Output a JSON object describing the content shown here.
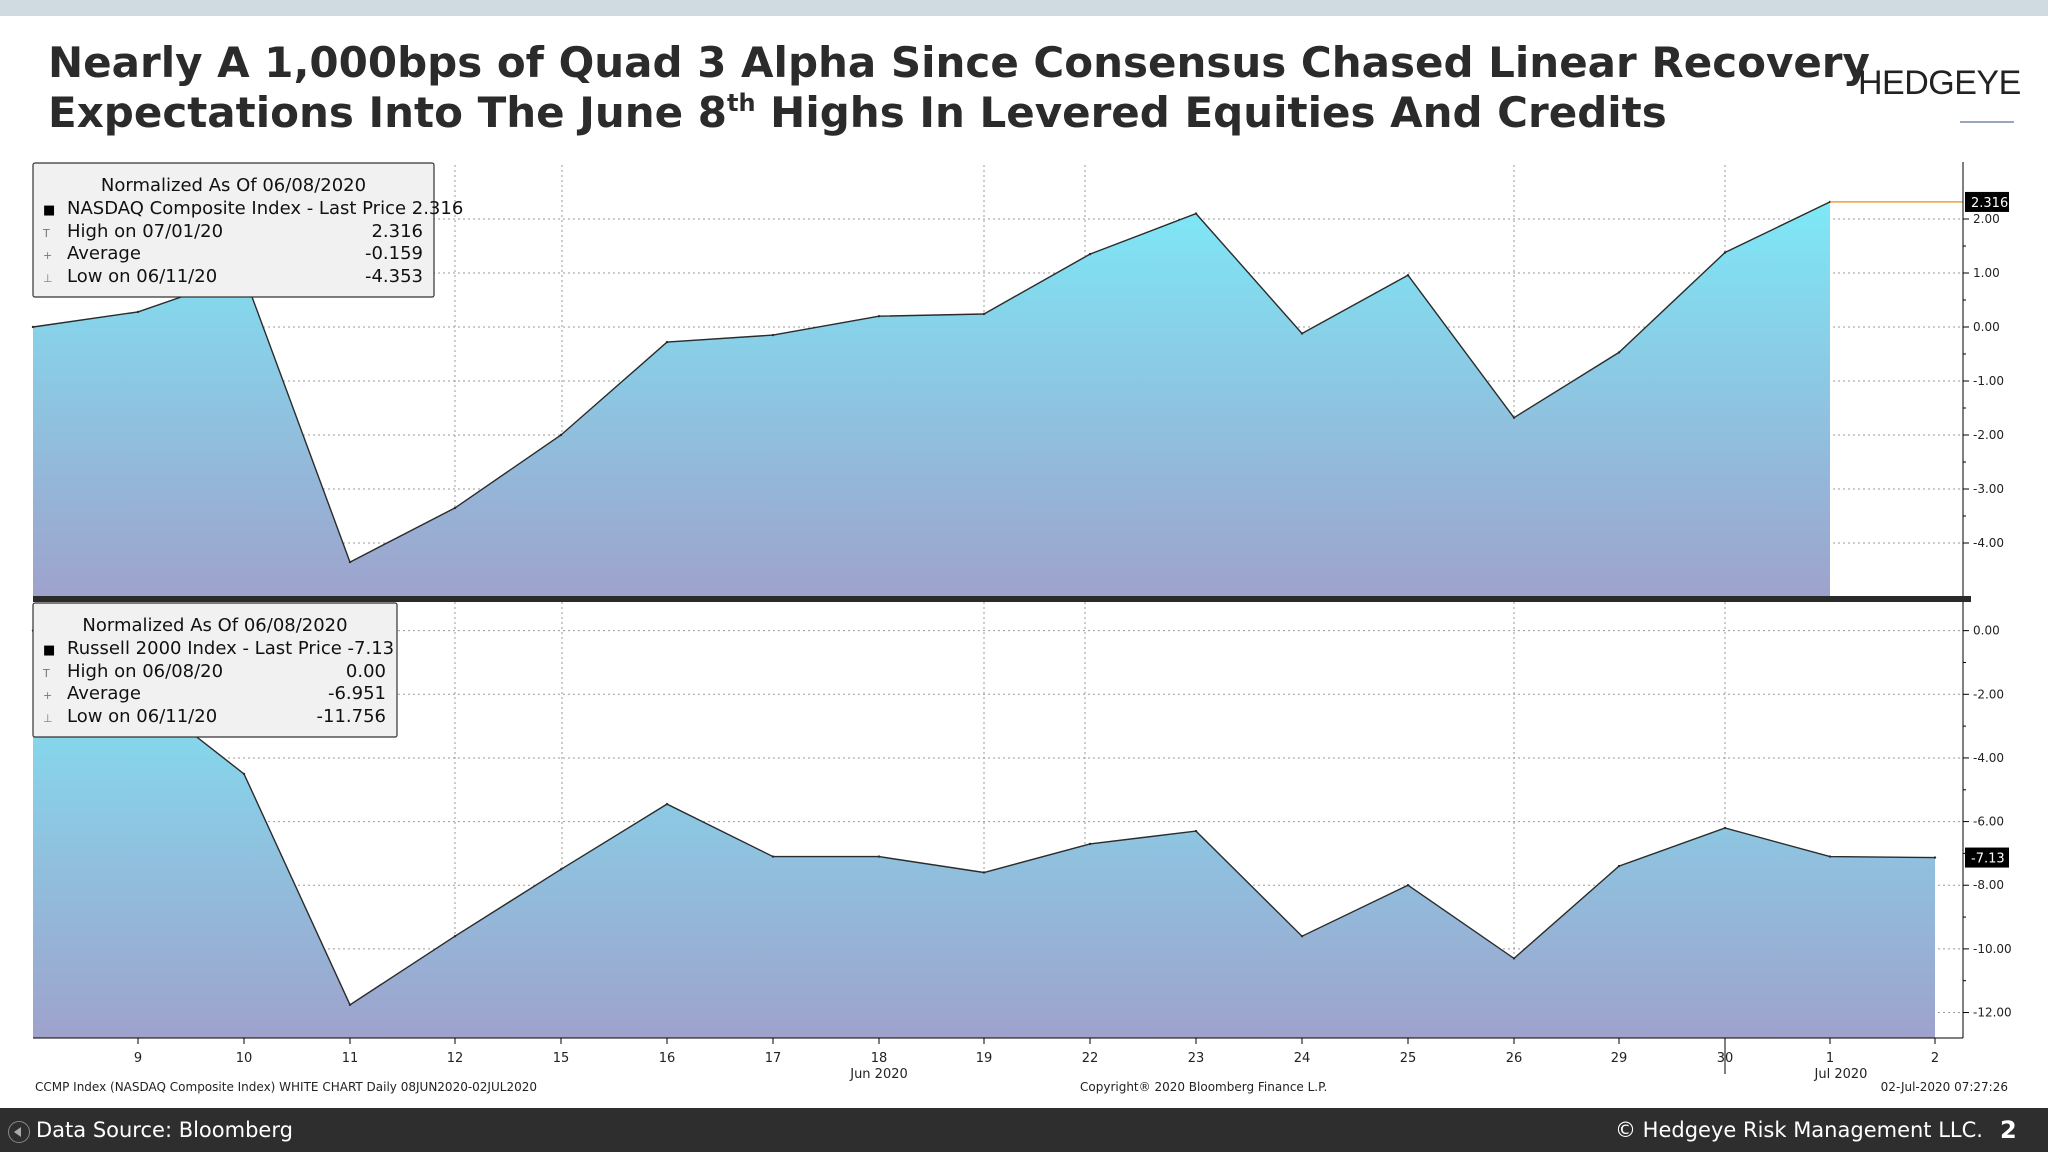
{
  "header": {
    "title_line1": "Nearly A 1,000bps of Quad 3 Alpha Since Consensus Chased Linear Recovery",
    "title_line2_pre": "Expectations Into The June 8",
    "title_line2_sup": "th",
    "title_line2_post": " Highs In Levered Equities And Credits",
    "logo": "HEDGEYE"
  },
  "footer": {
    "data_source": "Data Source: Bloomberg",
    "copyright": "© Hedgeye Risk Management LLC.",
    "page_number": "2",
    "chart_source": "CCMP Index (NASDAQ Composite Index) WHITE CHART  Daily 08JUN2020-02JUL2020",
    "chart_copyright": "Copyright® 2020 Bloomberg Finance L.P.",
    "chart_timestamp": "02-Jul-2020 07:27:26"
  },
  "colors": {
    "fill_top": "#7de8f6",
    "fill_bottom": "#9ea2cc",
    "line": "#2b2b2b",
    "last_price_line": "#f0a030",
    "grid": "#9a9a9a"
  },
  "chart_data": [
    {
      "type": "area",
      "x": [
        "2020-06-08",
        "2020-06-09",
        "2020-06-10",
        "2020-06-11",
        "2020-06-12",
        "2020-06-15",
        "2020-06-16",
        "2020-06-17",
        "2020-06-18",
        "2020-06-19",
        "2020-06-22",
        "2020-06-23",
        "2020-06-24",
        "2020-06-25",
        "2020-06-26",
        "2020-06-29",
        "2020-06-30",
        "2020-07-01"
      ],
      "series": [
        {
          "name": "NASDAQ Composite Index - Last Price",
          "values": [
            0.0,
            0.28,
            0.96,
            -4.353,
            -3.35,
            -2.0,
            -0.28,
            -0.15,
            0.2,
            0.24,
            1.35,
            2.1,
            -0.12,
            0.96,
            -1.68,
            -0.47,
            1.38,
            2.316
          ]
        }
      ],
      "ylim": [
        -5.0,
        3.0
      ],
      "yticks": [
        -4,
        -3,
        -2,
        -1,
        0,
        1,
        2
      ],
      "ytick_labels": [
        "-4.00",
        "-3.00",
        "-2.00",
        "-1.00",
        "0.00",
        "1.00",
        "2.00"
      ],
      "last_price_label": "2.316",
      "last_price": 2.316,
      "legend": {
        "title": "Normalized As Of 06/08/2020",
        "rows": [
          {
            "label": "NASDAQ Composite Index - Last Price 2.316",
            "value": ""
          },
          {
            "label": "High on 07/01/20",
            "value": "2.316"
          },
          {
            "label": "Average",
            "value": "-0.159"
          },
          {
            "label": "Low on 06/11/20",
            "value": "-4.353"
          }
        ],
        "placement": "top-left"
      }
    },
    {
      "type": "area",
      "x": [
        "2020-06-08",
        "2020-06-09",
        "2020-06-10",
        "2020-06-11",
        "2020-06-12",
        "2020-06-15",
        "2020-06-16",
        "2020-06-17",
        "2020-06-18",
        "2020-06-19",
        "2020-06-22",
        "2020-06-23",
        "2020-06-24",
        "2020-06-25",
        "2020-06-26",
        "2020-06-29",
        "2020-06-30",
        "2020-07-01",
        "2020-07-02"
      ],
      "series": [
        {
          "name": "Russell 2000 Index - Last Price",
          "values": [
            0.0,
            -1.9,
            -4.5,
            -11.756,
            -9.6,
            -7.5,
            -5.45,
            -7.1,
            -7.1,
            -7.6,
            -6.7,
            -6.3,
            -9.6,
            -8.0,
            -10.3,
            -7.4,
            -6.2,
            -7.1,
            -7.13
          ]
        }
      ],
      "ylim": [
        -12.8,
        0.9
      ],
      "yticks": [
        -12,
        -10,
        -8,
        -6,
        -4,
        -2,
        0
      ],
      "ytick_labels": [
        "-12.00",
        "-10.00",
        "-8.00",
        "-6.00",
        "-4.00",
        "-2.00",
        "0.00"
      ],
      "last_price_label": "-7.13",
      "last_price": -7.13,
      "legend": {
        "title": "Normalized As Of 06/08/2020",
        "rows": [
          {
            "label": "Russell 2000 Index - Last Price -7.13",
            "value": ""
          },
          {
            "label": "High on 06/08/20",
            "value": "0.00"
          },
          {
            "label": "Average",
            "value": "-6.951"
          },
          {
            "label": "Low on 06/11/20",
            "value": "-11.756"
          }
        ],
        "placement": "top-left"
      }
    }
  ],
  "x_axis": {
    "tick_labels": [
      "9",
      "10",
      "11",
      "12",
      "15",
      "16",
      "17",
      "18",
      "19",
      "22",
      "23",
      "24",
      "25",
      "26",
      "29",
      "30",
      "1",
      "2"
    ],
    "month_labels": [
      {
        "label": "Jun 2020",
        "at": "18"
      },
      {
        "label": "Jul 2020",
        "at": "1"
      }
    ]
  }
}
